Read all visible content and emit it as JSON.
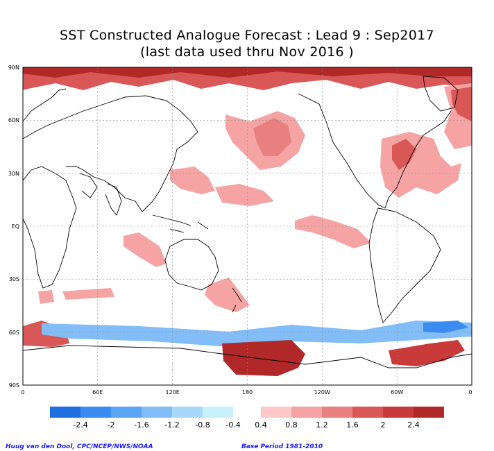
{
  "title": {
    "line1": "SST Constructed Analogue Forecast : Lead 9 : Sep2017",
    "line2": "(last data used thru Nov 2016 )"
  },
  "map": {
    "lat_labels": [
      "90N",
      "60N",
      "30N",
      "EQ",
      "30S",
      "60S",
      "90S"
    ],
    "lon_labels": [
      "0",
      "60E",
      "120E",
      "180",
      "120W",
      "60W",
      "0"
    ],
    "projection": "equirectangular, 0 to 360 longitude",
    "grid": "dotted lines every 30 degrees",
    "land_color": "#ffffff",
    "coastline_color": "#000000"
  },
  "colorbar": {
    "negative_colors": [
      "#1e6fe0",
      "#3a8cf0",
      "#5aa5f5",
      "#82bdf7",
      "#a8d8f8",
      "#c8f0ff"
    ],
    "positive_colors": [
      "#ffc8c8",
      "#f5a3a3",
      "#e88080",
      "#d95757",
      "#c93a3a",
      "#b02828"
    ],
    "negative_tick_labels": [
      "-2.4",
      "-2",
      "-1.6",
      "-1.2",
      "-0.8",
      "-0.4"
    ],
    "positive_tick_labels": [
      "0.4",
      "0.8",
      "1.2",
      "1.6",
      "2",
      "2.4"
    ]
  },
  "footer": {
    "credit": "Huug van den Dool, CPC/NCEP/NWS/NOAA",
    "base_period": "Base Period 1981-2010"
  }
}
